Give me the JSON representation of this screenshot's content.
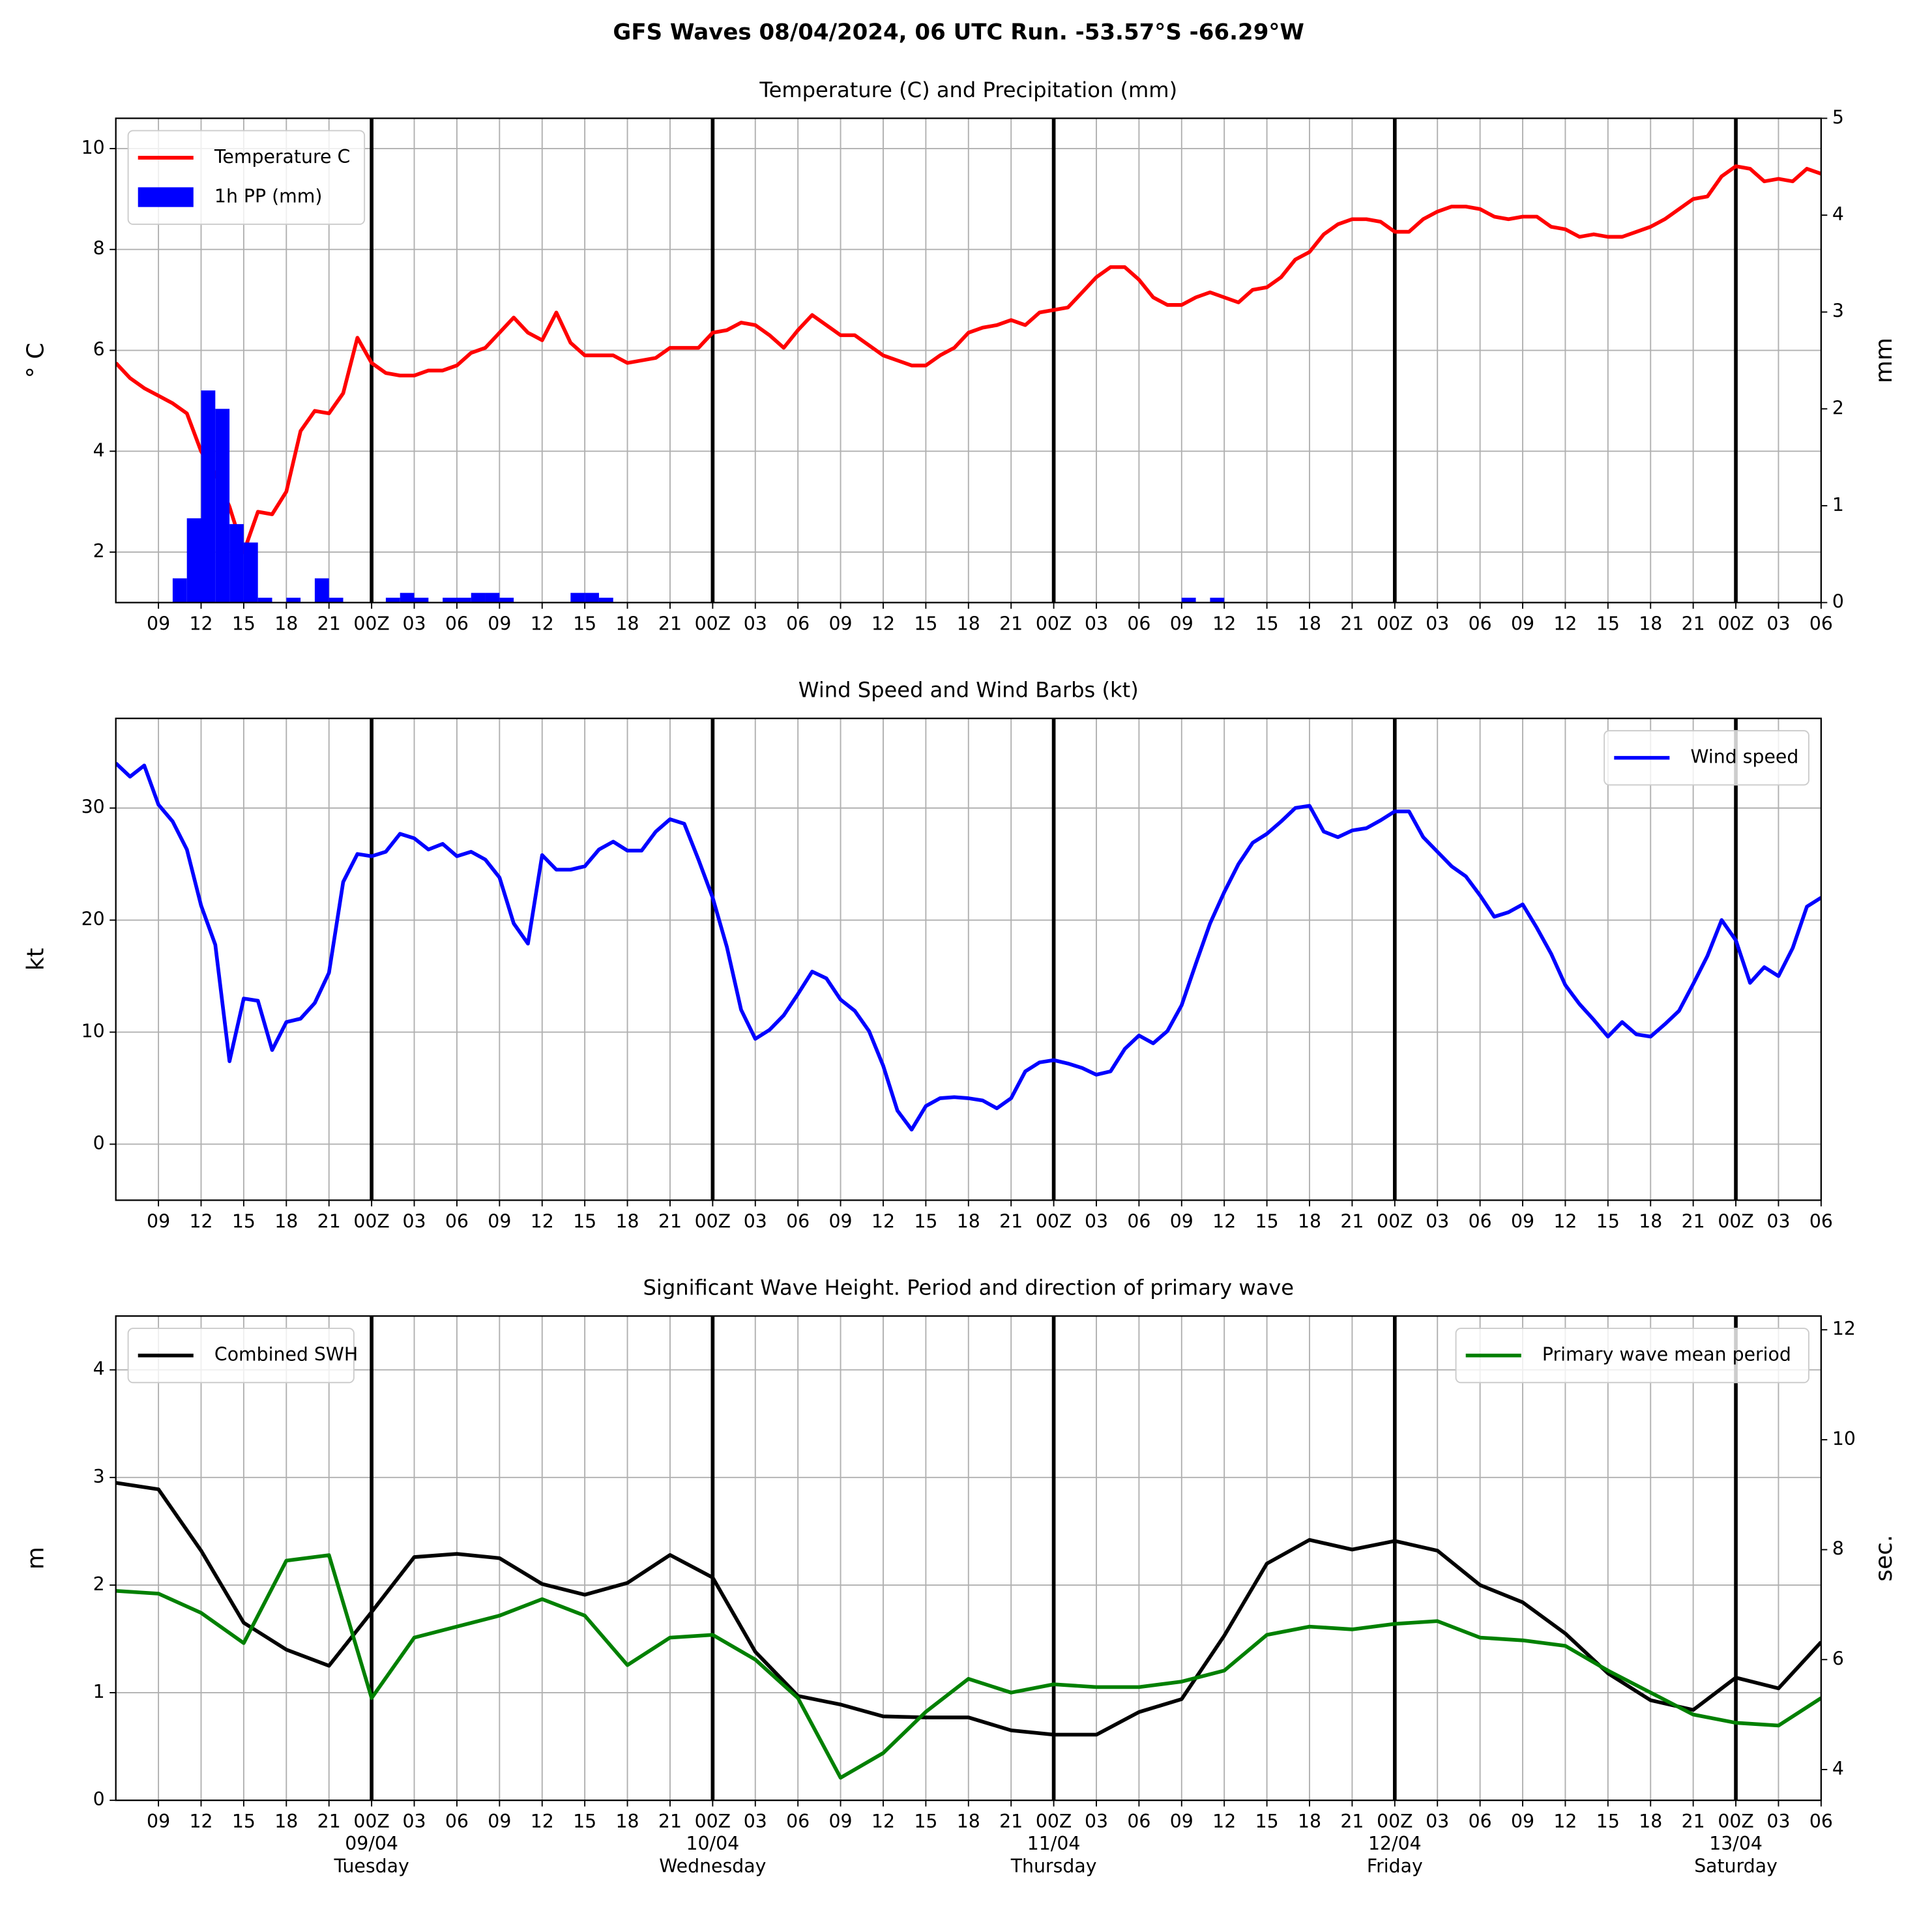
{
  "title": "GFS Waves 08/04/2024, 06 UTC Run. -53.57°S -66.29°W",
  "chart_data": [
    {
      "type": "line",
      "title": "Temperature (C) and Precipitation (mm)",
      "ylabel": "° C",
      "y2label": "mm",
      "categories": [
        null,
        null,
        null,
        "09",
        null,
        null,
        "12",
        null,
        null,
        "15",
        null,
        null,
        "18",
        null,
        null,
        "21",
        null,
        null,
        "00Z",
        null,
        null,
        "03",
        null,
        null,
        "06",
        null,
        null,
        "09",
        null,
        null,
        "12",
        null,
        null,
        "15",
        null,
        null,
        "18",
        null,
        null,
        "21",
        null,
        null,
        "00Z",
        null,
        null,
        "03",
        null,
        null,
        "06",
        null,
        null,
        "09",
        null,
        null,
        "12",
        null,
        null,
        "15",
        null,
        null,
        "18",
        null,
        null,
        "21",
        null,
        null,
        "00Z",
        null,
        null,
        "03",
        null,
        null,
        "06",
        null,
        null,
        "09",
        null,
        null,
        "12",
        null,
        null,
        "15",
        null,
        null,
        "18",
        null,
        null,
        "21",
        null,
        null,
        "00Z",
        null,
        null,
        "03",
        null,
        null,
        "06",
        null,
        null,
        "09",
        null,
        null,
        "12",
        null,
        null,
        "15",
        null,
        null,
        "18",
        null,
        null,
        "21",
        null,
        null,
        "00Z",
        null,
        null,
        "03",
        null,
        null,
        "06"
      ],
      "series": [
        {
          "name": "Temperature C",
          "type": "line",
          "color": "#ff0000",
          "values": [
            5.75,
            5.45,
            5.25,
            5.1,
            4.95,
            4.75,
            4.0,
            3.55,
            2.9,
            2.0,
            2.8,
            2.75,
            3.2,
            4.4,
            4.8,
            4.75,
            5.15,
            6.25,
            5.75,
            5.55,
            5.5,
            5.5,
            5.6,
            5.6,
            5.7,
            5.95,
            6.05,
            6.35,
            6.65,
            6.35,
            6.2,
            6.75,
            6.15,
            5.9,
            5.9,
            5.9,
            5.75,
            5.8,
            5.85,
            6.05,
            6.05,
            6.05,
            6.35,
            6.4,
            6.55,
            6.5,
            6.3,
            6.05,
            6.4,
            6.7,
            6.5,
            6.3,
            6.3,
            6.1,
            5.9,
            5.8,
            5.7,
            5.7,
            5.9,
            6.05,
            6.35,
            6.45,
            6.5,
            6.6,
            6.5,
            6.75,
            6.8,
            6.85,
            7.15,
            7.45,
            7.65,
            7.65,
            7.4,
            7.05,
            6.9,
            6.9,
            7.05,
            7.15,
            7.05,
            6.95,
            7.2,
            7.25,
            7.45,
            7.8,
            7.95,
            8.3,
            8.5,
            8.6,
            8.6,
            8.55,
            8.35,
            8.35,
            8.6,
            8.75,
            8.85,
            8.85,
            8.8,
            8.65,
            8.6,
            8.65,
            8.65,
            8.45,
            8.4,
            8.25,
            8.3,
            8.25,
            8.25,
            8.35,
            8.45,
            8.6,
            8.8,
            9.0,
            9.05,
            9.45,
            9.65,
            9.6,
            9.35,
            9.4,
            9.35,
            9.6,
            9.5
          ]
        },
        {
          "name": "1h PP (mm)",
          "type": "bar",
          "axis": "y2",
          "color": "#0000ff",
          "values": [
            0,
            0,
            0,
            0,
            0.25,
            0.87,
            2.19,
            2.0,
            0.81,
            0.62,
            0.05,
            0,
            0.05,
            0,
            0.25,
            0.05,
            0,
            0,
            0,
            0.05,
            0.1,
            0.05,
            0,
            0.05,
            0.05,
            0.1,
            0.1,
            0.05,
            0,
            0,
            0,
            0,
            0.1,
            0.1,
            0.05,
            0,
            0,
            0,
            0,
            0,
            0,
            0,
            0,
            0,
            0,
            0,
            0,
            0,
            0,
            0,
            0,
            0,
            0,
            0,
            0,
            0,
            0,
            0,
            0,
            0,
            0,
            0,
            0,
            0,
            0,
            0,
            0,
            0,
            0,
            0,
            0,
            0,
            0,
            0,
            0,
            0.05,
            0,
            0.05,
            0,
            0,
            0,
            0,
            0,
            0,
            0,
            0,
            0,
            0,
            0,
            0,
            0,
            0,
            0,
            0,
            0,
            0,
            0,
            0,
            0,
            0,
            0,
            0,
            0,
            0,
            0,
            0,
            0,
            0,
            0,
            0,
            0,
            0,
            0,
            0,
            0,
            0,
            0,
            0,
            0,
            0,
            0
          ]
        }
      ],
      "ylim": [
        1,
        10.6
      ],
      "yticks": [
        2,
        4,
        6,
        8,
        10
      ],
      "y2lim": [
        0,
        5
      ],
      "y2ticks": [
        0,
        1,
        2,
        3,
        4,
        5
      ],
      "grid": true,
      "legend": "upper left"
    },
    {
      "type": "line",
      "title": "Wind Speed and Wind Barbs (kt)",
      "ylabel": "kt",
      "categories": [
        null,
        null,
        null,
        "09",
        null,
        null,
        "12",
        null,
        null,
        "15",
        null,
        null,
        "18",
        null,
        null,
        "21",
        null,
        null,
        "00Z",
        null,
        null,
        "03",
        null,
        null,
        "06",
        null,
        null,
        "09",
        null,
        null,
        "12",
        null,
        null,
        "15",
        null,
        null,
        "18",
        null,
        null,
        "21",
        null,
        null,
        "00Z",
        null,
        null,
        "03",
        null,
        null,
        "06",
        null,
        null,
        "09",
        null,
        null,
        "12",
        null,
        null,
        "15",
        null,
        null,
        "18",
        null,
        null,
        "21",
        null,
        null,
        "00Z",
        null,
        null,
        "03",
        null,
        null,
        "06",
        null,
        null,
        "09",
        null,
        null,
        "12",
        null,
        null,
        "15",
        null,
        null,
        "18",
        null,
        null,
        "21",
        null,
        null,
        "00Z",
        null,
        null,
        "03",
        null,
        null,
        "06",
        null,
        null,
        "09",
        null,
        null,
        "12",
        null,
        null,
        "15",
        null,
        null,
        "18",
        null,
        null,
        "21",
        null,
        null,
        "00Z",
        null,
        null,
        "03",
        null,
        null,
        "06"
      ],
      "series": [
        {
          "name": "Wind speed",
          "type": "line",
          "color": "#0000ff",
          "values": [
            34,
            32.8,
            33.8,
            30.3,
            28.8,
            26.3,
            21.3,
            17.8,
            7.4,
            13.0,
            12.8,
            8.4,
            10.9,
            11.2,
            12.6,
            15.3,
            23.4,
            25.9,
            25.7,
            26.1,
            27.7,
            27.3,
            26.3,
            26.8,
            25.7,
            26.1,
            25.4,
            23.8,
            19.7,
            17.9,
            25.8,
            24.5,
            24.5,
            24.8,
            26.3,
            27.0,
            26.2,
            26.2,
            27.9,
            29.0,
            28.6,
            25.4,
            22.0,
            17.6,
            12.0,
            9.4,
            10.2,
            11.5,
            13.4,
            15.4,
            14.8,
            12.9,
            11.9,
            10.1,
            7.0,
            3.0,
            1.3,
            3.4,
            4.1,
            4.2,
            4.1,
            3.9,
            3.2,
            4.1,
            6.5,
            7.3,
            7.5,
            7.2,
            6.8,
            6.2,
            6.5,
            8.5,
            9.7,
            9.0,
            10.1,
            12.4,
            16.1,
            19.7,
            22.5,
            25.0,
            26.9,
            27.7,
            28.8,
            30.0,
            30.2,
            27.9,
            27.4,
            28.0,
            28.2,
            28.9,
            29.7,
            29.7,
            27.4,
            26.1,
            24.8,
            23.9,
            22.2,
            20.3,
            20.7,
            21.4,
            19.3,
            17.0,
            14.2,
            12.5,
            11.1,
            9.6,
            10.9,
            9.8,
            9.6,
            10.7,
            11.9,
            14.3,
            16.8,
            20.0,
            18.2,
            14.4,
            15.8,
            15.0,
            17.5,
            21.2,
            22.0
          ]
        }
      ],
      "ylim": [
        -5,
        38
      ],
      "yticks": [
        0,
        10,
        20,
        30
      ],
      "grid": true,
      "legend": "upper right"
    },
    {
      "type": "line",
      "title": "Significant Wave Height. Period and direction of primary wave",
      "ylabel": "m",
      "y2label": "sec.",
      "y2label_color": "#008000",
      "categories": [
        null,
        "09",
        "12",
        "15",
        "18",
        "21",
        "00Z\n09/04\nTuesday",
        "03",
        "06",
        "09",
        "12",
        "15",
        "18",
        "21",
        "00Z\n10/04\nWednesday",
        "03",
        "06",
        "09",
        "12",
        "15",
        "18",
        "21",
        "00Z\n11/04\nThursday",
        "03",
        "06",
        "09",
        "12",
        "15",
        "18",
        "21",
        "00Z\n12/04\nFriday",
        "03",
        "06",
        "09",
        "12",
        "15",
        "18",
        "21",
        "00Z\n13/04\nSaturday",
        "03",
        "06"
      ],
      "series": [
        {
          "name": "Combined SWH",
          "type": "line",
          "color": "#000000",
          "values": [
            2.95,
            2.89,
            2.32,
            1.65,
            1.4,
            1.25,
            1.75,
            2.26,
            2.29,
            2.25,
            2.01,
            1.91,
            2.02,
            2.28,
            2.07,
            1.38,
            0.97,
            0.89,
            0.78,
            0.77,
            0.77,
            0.65,
            0.61,
            0.61,
            0.82,
            0.94,
            1.53,
            2.2,
            2.42,
            2.33,
            2.41,
            2.32,
            2.0,
            1.84,
            1.55,
            1.18,
            0.93,
            0.84,
            1.14,
            1.04,
            1.47
          ]
        },
        {
          "name": "Primary wave mean period",
          "type": "line",
          "axis": "y2",
          "color": "#008000",
          "values": [
            7.25,
            7.2,
            6.85,
            6.3,
            7.8,
            7.9,
            5.3,
            6.4,
            6.6,
            6.8,
            7.1,
            6.8,
            5.9,
            6.4,
            6.45,
            6.0,
            5.3,
            3.85,
            4.3,
            5.05,
            5.65,
            5.4,
            5.55,
            5.5,
            5.5,
            5.6,
            5.8,
            6.45,
            6.6,
            6.55,
            6.65,
            6.7,
            6.4,
            6.35,
            6.25,
            5.8,
            5.4,
            5.0,
            4.85,
            4.8,
            5.3
          ]
        }
      ],
      "ylim": [
        0,
        4.5
      ],
      "yticks": [
        0,
        1,
        2,
        3,
        4
      ],
      "y2lim": [
        3.44,
        12.25
      ],
      "y2ticks": [
        4,
        6,
        8,
        10,
        12
      ],
      "grid": true,
      "legend": "upper left",
      "legend_y2": "upper right"
    }
  ]
}
